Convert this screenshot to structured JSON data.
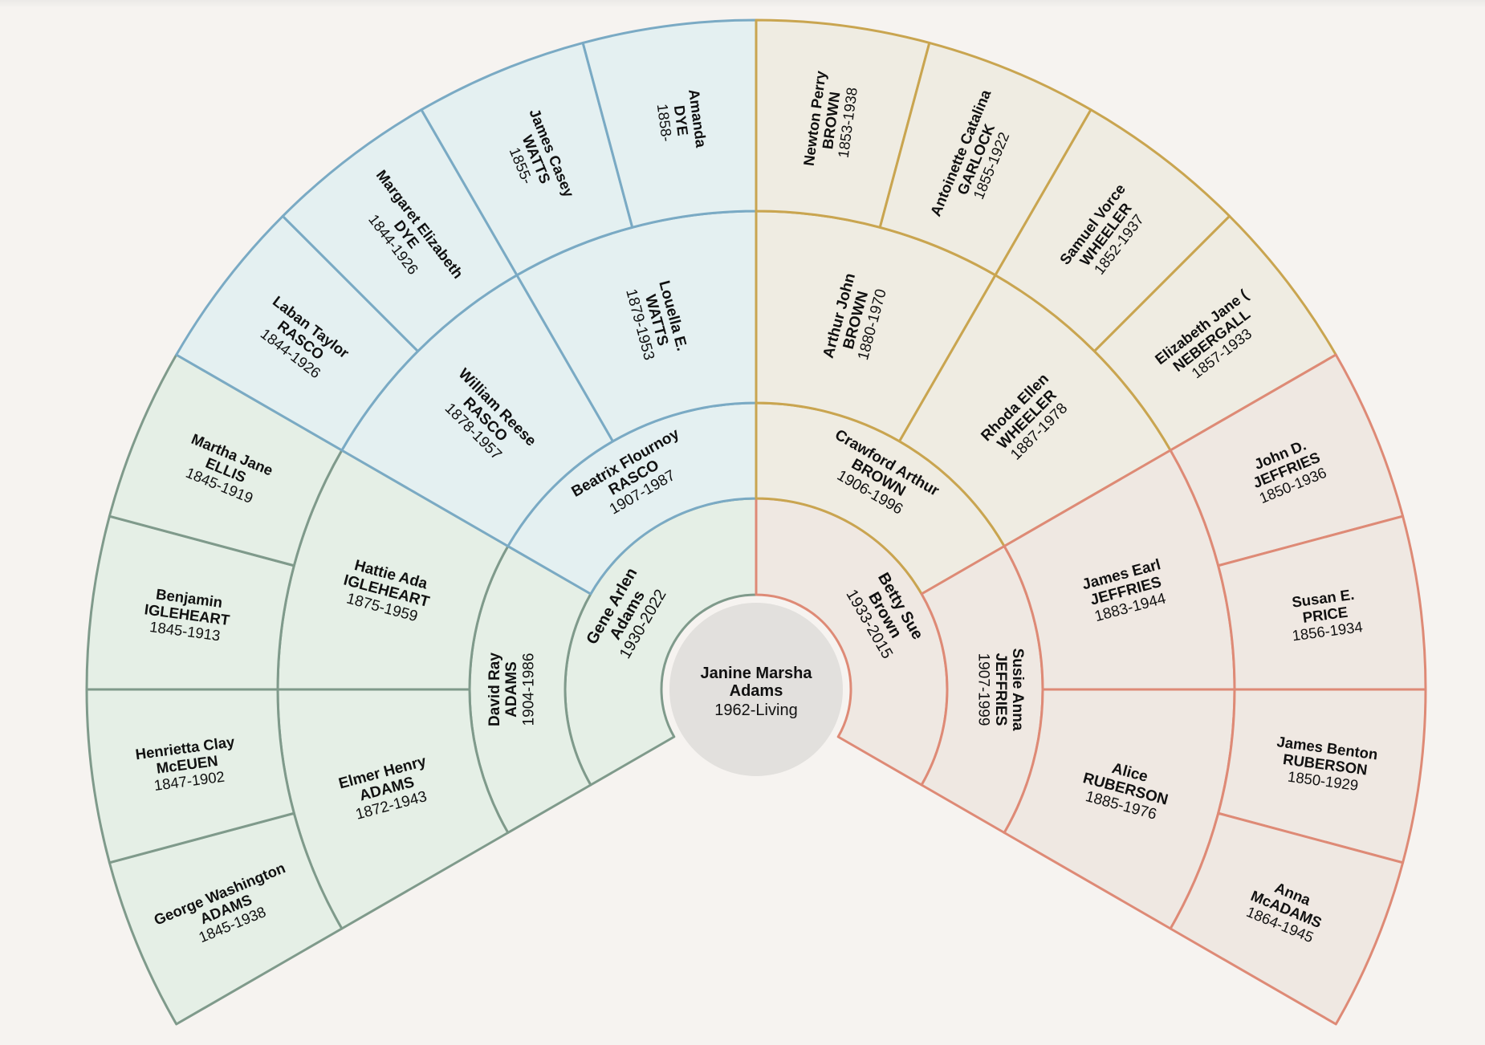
{
  "colors": {
    "background": "#f6f3f0",
    "center_fill": "#e2e0dd",
    "groups": {
      "green": {
        "fill": "#e5efe6",
        "stroke": "#7f9a8b"
      },
      "blue": {
        "fill": "#e4f0f1",
        "stroke": "#7aaac4"
      },
      "gold": {
        "fill": "#efece2",
        "stroke": "#c9a550"
      },
      "red": {
        "fill": "#efe8e2",
        "stroke": "#de8a76"
      }
    }
  },
  "root": {
    "name": "Janine Marsha",
    "surname": "Adams",
    "dates": "1962-Living"
  },
  "generations": [
    [
      {
        "name": "Gene Arlen",
        "surname": "Adams",
        "dates": "1930-2022",
        "group": "green"
      },
      {
        "name": "Betty Sue",
        "surname": "Brown",
        "dates": "1933-2015",
        "group": "red"
      }
    ],
    [
      {
        "name": "David Ray",
        "surname": "ADAMS",
        "dates": "1904-1986",
        "group": "green"
      },
      {
        "name": "Beatrix Flournoy",
        "surname": "RASCO",
        "dates": "1907-1987",
        "group": "blue"
      },
      {
        "name": "Crawford Arthur",
        "surname": "BROWN",
        "dates": "1906-1996",
        "group": "gold"
      },
      {
        "name": "Susie Anna",
        "surname": "JEFFRIES",
        "dates": "1907-1999",
        "group": "red"
      }
    ],
    [
      {
        "name": "Elmer Henry",
        "surname": "ADAMS",
        "dates": "1872-1943",
        "group": "green"
      },
      {
        "name": "Hattie Ada",
        "surname": "IGLEHEART",
        "dates": "1875-1959",
        "group": "green"
      },
      {
        "name": "William Reese",
        "surname": "RASCO",
        "dates": "1878-1957",
        "group": "blue"
      },
      {
        "name": "Louella E.",
        "surname": "WATTS",
        "dates": "1879-1953",
        "group": "blue"
      },
      {
        "name": "Arthur John",
        "surname": "BROWN",
        "dates": "1880-1970",
        "group": "gold"
      },
      {
        "name": "Rhoda Ellen",
        "surname": "WHEELER",
        "dates": "1887-1978",
        "group": "gold"
      },
      {
        "name": "James Earl",
        "surname": "JEFFRIES",
        "dates": "1883-1944",
        "group": "red"
      },
      {
        "name": "Alice",
        "surname": "RUBERSON",
        "dates": "1885-1976",
        "group": "red"
      }
    ],
    [
      {
        "name": "George Washington",
        "surname": "ADAMS",
        "dates": "1845-1938",
        "group": "green"
      },
      {
        "name": "Henrietta Clay",
        "surname": "McEUEN",
        "dates": "1847-1902",
        "group": "green"
      },
      {
        "name": "Benjamin",
        "surname": "IGLEHEART",
        "dates": "1845-1913",
        "group": "green"
      },
      {
        "name": "Martha Jane",
        "surname": "ELLIS",
        "dates": "1845-1919",
        "group": "green"
      },
      {
        "name": "Laban Taylor",
        "surname": "RASCO",
        "dates": "1844-1926",
        "group": "blue"
      },
      {
        "name": "Margaret Elizabeth",
        "surname": "DYE",
        "dates": "1844-1926",
        "group": "blue"
      },
      {
        "name": "James Casey",
        "surname": "WATTS",
        "dates": "1855-",
        "group": "blue"
      },
      {
        "name": "Amanda",
        "surname": "DYE",
        "dates": "1858-",
        "group": "blue"
      },
      {
        "name": "Newton Perry",
        "surname": "BROWN",
        "dates": "1853-1938",
        "group": "gold"
      },
      {
        "name": "Antoinette Catalina",
        "surname": "GARLOCK",
        "dates": "1855-1922",
        "group": "gold"
      },
      {
        "name": "Samuel Vorce",
        "surname": "WHEELER",
        "dates": "1852-1937",
        "group": "gold"
      },
      {
        "name": "Elizabeth Jane (",
        "surname": "NEBERGALL",
        "dates": "1857-1933",
        "group": "gold"
      },
      {
        "name": "John D.",
        "surname": "JEFFRIES",
        "dates": "1850-1936",
        "group": "red"
      },
      {
        "name": "Susan E.",
        "surname": "PRICE",
        "dates": "1856-1934",
        "group": "red"
      },
      {
        "name": "James Benton",
        "surname": "RUBERSON",
        "dates": "1850-1929",
        "group": "red"
      },
      {
        "name": "Anna",
        "surname": "McADAMS",
        "dates": "1864-1945",
        "group": "red"
      }
    ]
  ]
}
